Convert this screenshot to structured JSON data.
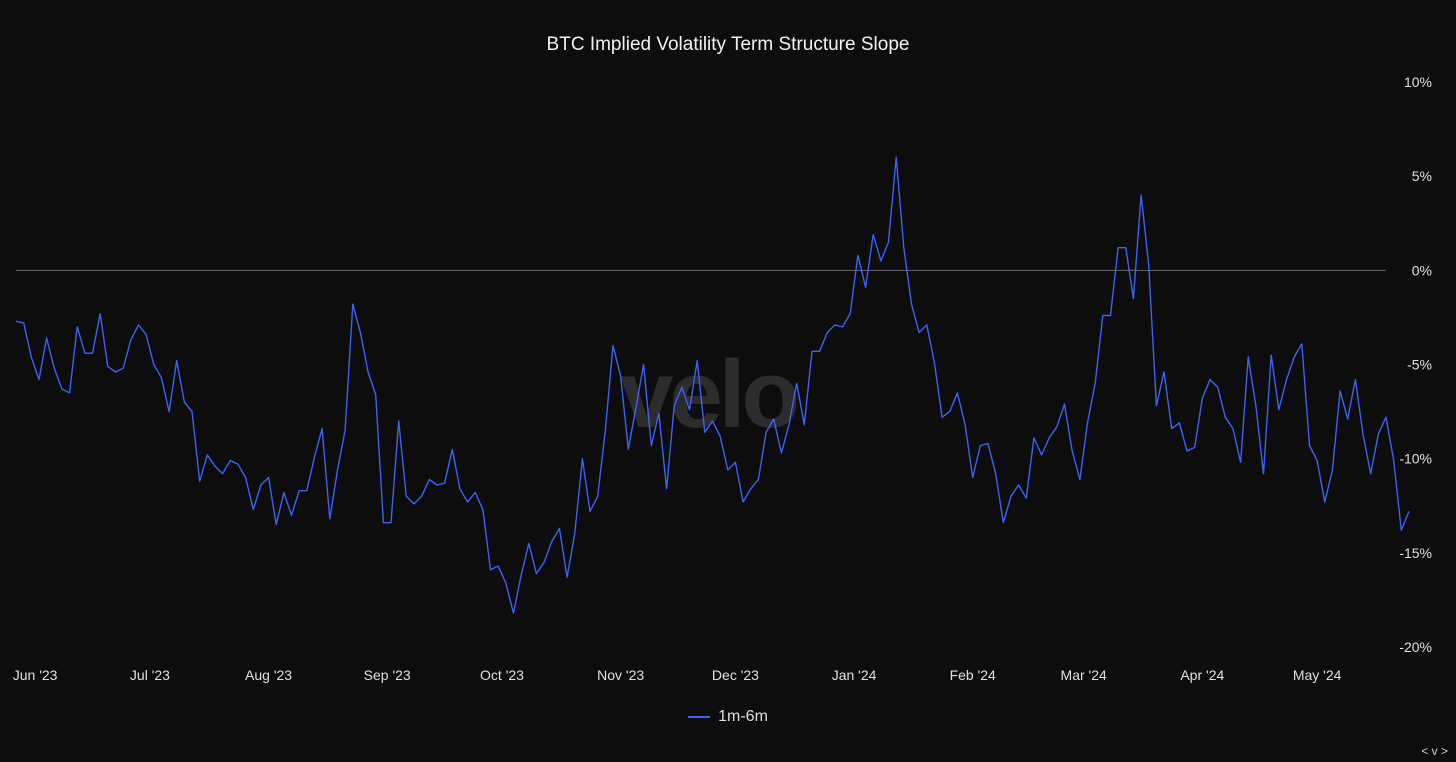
{
  "chart_data": {
    "type": "line",
    "title": "BTC Implied Volatility Term Structure Slope",
    "watermark": "velo",
    "corner_text": "< v >",
    "ylim": [
      -20,
      10
    ],
    "y_ticks": [
      10,
      5,
      0,
      -5,
      -10,
      -15,
      -20
    ],
    "y_tick_labels": [
      "10%",
      "5%",
      "0%",
      "-5%",
      "-10%",
      "-15%",
      "-20%"
    ],
    "x_ticks": [
      "2023-06-01",
      "2023-07-01",
      "2023-08-01",
      "2023-09-01",
      "2023-10-01",
      "2023-11-01",
      "2023-12-01",
      "2024-01-01",
      "2024-02-01",
      "2024-03-01",
      "2024-04-01",
      "2024-05-01"
    ],
    "x_tick_labels": [
      "Jun '23",
      "Jul '23",
      "Aug '23",
      "Sep '23",
      "Oct '23",
      "Nov '23",
      "Dec '23",
      "Jan '24",
      "Feb '24",
      "Mar '24",
      "Apr '24",
      "May '24"
    ],
    "x_range": [
      "2023-05-27",
      "2024-05-19"
    ],
    "reference_line": 0,
    "grid": false,
    "legend_position": "bottom-center",
    "series": [
      {
        "name": "1m-6m",
        "color": "#3b63f5",
        "start_date": "2023-05-27",
        "step_days": 2,
        "values": [
          -2.7,
          -2.8,
          -4.6,
          -5.8,
          -3.6,
          -5.2,
          -6.3,
          -6.5,
          -3.0,
          -4.4,
          -4.4,
          -2.3,
          -5.1,
          -5.4,
          -5.2,
          -3.7,
          -2.9,
          -3.4,
          -5.0,
          -5.7,
          -7.5,
          -4.8,
          -7.0,
          -7.5,
          -11.2,
          -9.8,
          -10.4,
          -10.8,
          -10.1,
          -10.3,
          -11.0,
          -12.7,
          -11.4,
          -11.0,
          -13.5,
          -11.8,
          -13.0,
          -11.7,
          -11.7,
          -9.9,
          -8.4,
          -13.2,
          -10.6,
          -8.5,
          -1.8,
          -3.3,
          -5.4,
          -6.6,
          -13.4,
          -13.4,
          -8.0,
          -12.0,
          -12.4,
          -12.0,
          -11.1,
          -11.4,
          -11.3,
          -9.5,
          -11.6,
          -12.3,
          -11.8,
          -12.7,
          -15.9,
          -15.7,
          -16.6,
          -18.2,
          -16.2,
          -14.5,
          -16.1,
          -15.5,
          -14.4,
          -13.7,
          -16.3,
          -14.0,
          -10.0,
          -12.8,
          -12.0,
          -8.5,
          -4.0,
          -5.6,
          -9.5,
          -7.3,
          -5.0,
          -9.3,
          -7.6,
          -11.6,
          -7.2,
          -6.2,
          -7.4,
          -4.8,
          -8.6,
          -8.0,
          -8.8,
          -10.6,
          -10.2,
          -12.3,
          -11.6,
          -11.1,
          -8.6,
          -7.9,
          -9.7,
          -8.2,
          -6.0,
          -8.2,
          -4.3,
          -4.3,
          -3.3,
          -2.9,
          -3.0,
          -2.3,
          0.8,
          -0.9,
          1.9,
          0.5,
          1.5,
          6.0,
          1.2,
          -1.8,
          -3.3,
          -2.9,
          -4.9,
          -7.8,
          -7.5,
          -6.5,
          -8.2,
          -11.0,
          -9.3,
          -9.2,
          -10.8,
          -13.4,
          -12.0,
          -11.4,
          -12.1,
          -8.9,
          -9.8,
          -8.9,
          -8.3,
          -7.1,
          -9.6,
          -11.1,
          -8.1,
          -6.0,
          -2.4,
          -2.4,
          1.2,
          1.2,
          -1.5,
          4.0,
          0.3,
          -7.2,
          -5.4,
          -8.4,
          -8.1,
          -9.6,
          -9.4,
          -6.8,
          -5.8,
          -6.2,
          -7.8,
          -8.4,
          -10.2,
          -4.6,
          -7.2,
          -10.8,
          -4.5,
          -7.4,
          -5.8,
          -4.6,
          -3.9,
          -9.3,
          -10.1,
          -12.3,
          -10.6,
          -6.4,
          -7.9,
          -5.8,
          -8.7,
          -10.8,
          -8.7,
          -7.8,
          -10.1,
          -13.8,
          -12.8
        ]
      }
    ]
  }
}
